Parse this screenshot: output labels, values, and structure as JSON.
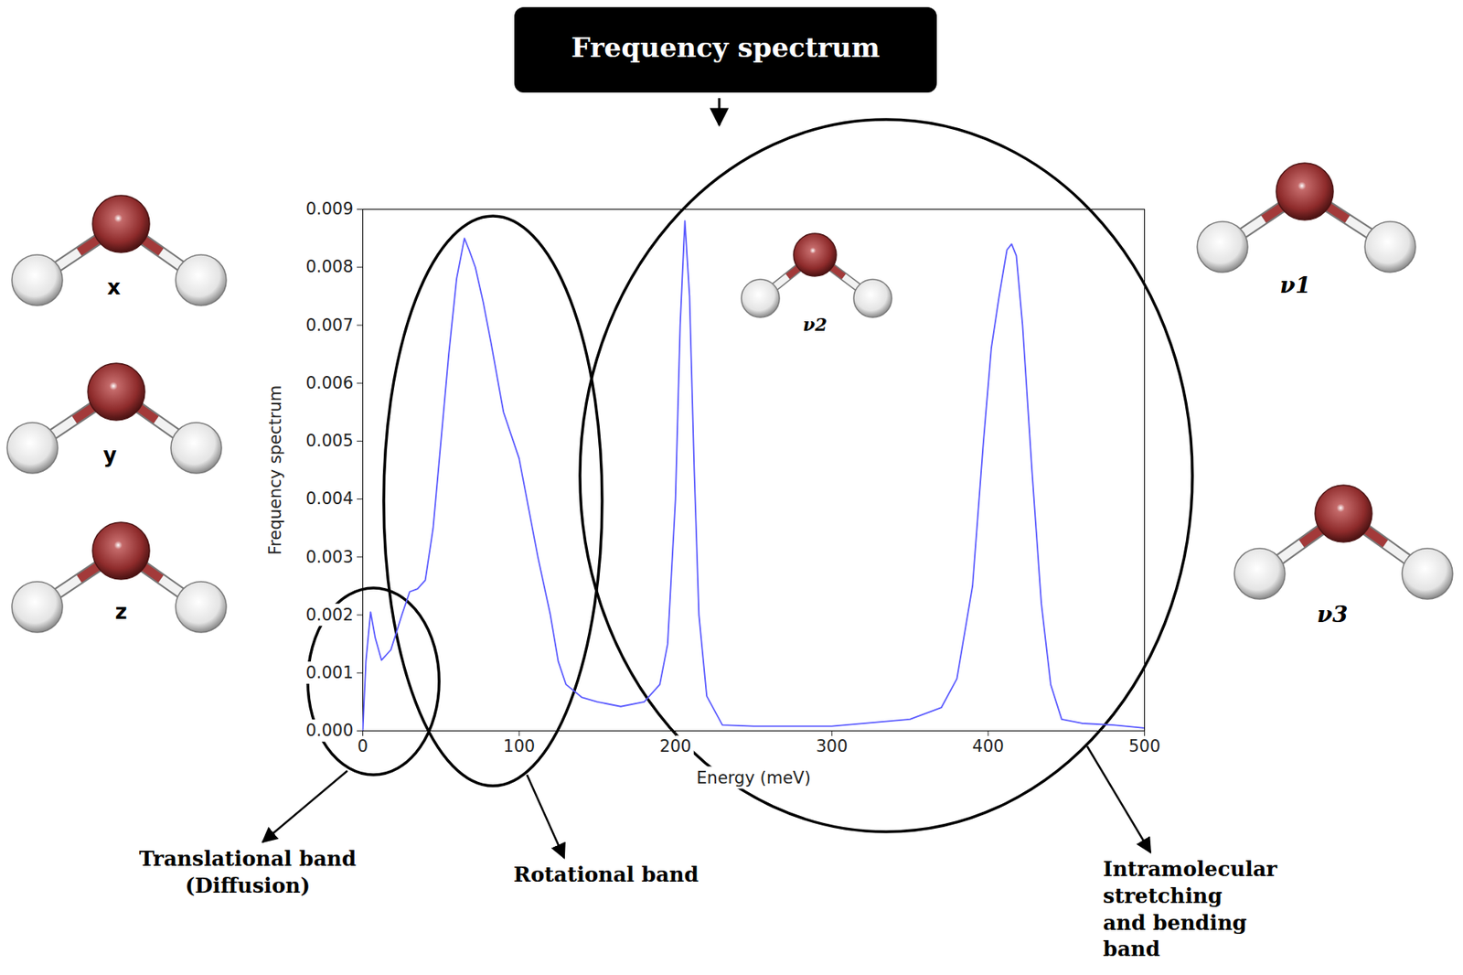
{
  "chart_data": {
    "type": "line",
    "title": "Frequency spectrum",
    "x_label": "Energy (meV)",
    "y_label": "Frequency spectrum",
    "color": "#5b5bff",
    "grid": false,
    "xlim": [
      0,
      500
    ],
    "xticks": [
      0,
      100,
      200,
      300,
      400,
      500
    ],
    "ylim": [
      0,
      0.009
    ],
    "yticks": [
      {
        "value": 0,
        "label": "0.000"
      },
      {
        "value": 0.001,
        "label": "0.001"
      },
      {
        "value": 0.002,
        "label": "0.002"
      },
      {
        "value": 0.003,
        "label": "0.003"
      },
      {
        "value": 0.004,
        "label": "0.004"
      },
      {
        "value": 0.005,
        "label": "0.005"
      },
      {
        "value": 0.006,
        "label": "0.006"
      },
      {
        "value": 0.007,
        "label": "0.007"
      },
      {
        "value": 0.008,
        "label": "0.008"
      },
      {
        "value": 0.009,
        "label": "0.009"
      }
    ],
    "x": [
      0,
      2,
      5,
      8,
      12,
      18,
      25,
      30,
      35,
      40,
      45,
      50,
      55,
      60,
      65,
      68,
      72,
      77,
      82,
      90,
      100,
      112,
      120,
      125,
      130,
      140,
      150,
      165,
      180,
      190,
      195,
      200,
      203,
      206,
      209,
      212,
      215,
      220,
      230,
      250,
      300,
      350,
      370,
      380,
      390,
      397,
      402,
      407,
      412,
      415,
      418,
      422,
      428,
      434,
      440,
      447,
      460,
      480,
      500
    ],
    "values": [
      0,
      0.0012,
      0.00205,
      0.0016,
      0.00122,
      0.0014,
      0.002,
      0.0024,
      0.00245,
      0.0026,
      0.0035,
      0.005,
      0.0065,
      0.0078,
      0.0085,
      0.0083,
      0.008,
      0.0074,
      0.0067,
      0.0055,
      0.0047,
      0.003,
      0.002,
      0.0012,
      0.0008,
      0.00058,
      0.0005,
      0.00042,
      0.0005,
      0.0008,
      0.0015,
      0.004,
      0.007,
      0.0088,
      0.0075,
      0.0045,
      0.002,
      0.0006,
      0.0001,
      8e-05,
      8e-05,
      0.0002,
      0.0004,
      0.0009,
      0.0025,
      0.005,
      0.0066,
      0.0075,
      0.0083,
      0.0084,
      0.0082,
      0.007,
      0.0045,
      0.0022,
      0.0008,
      0.0002,
      0.00013,
      0.0001,
      5e-05
    ],
    "annotations": {
      "bands": [
        "Translational band (Diffusion)",
        "Rotational band",
        "Intramolecular stretching and bending band"
      ],
      "modes": [
        "x",
        "y",
        "z",
        "ν2",
        "ν1",
        "ν3"
      ]
    }
  }
}
